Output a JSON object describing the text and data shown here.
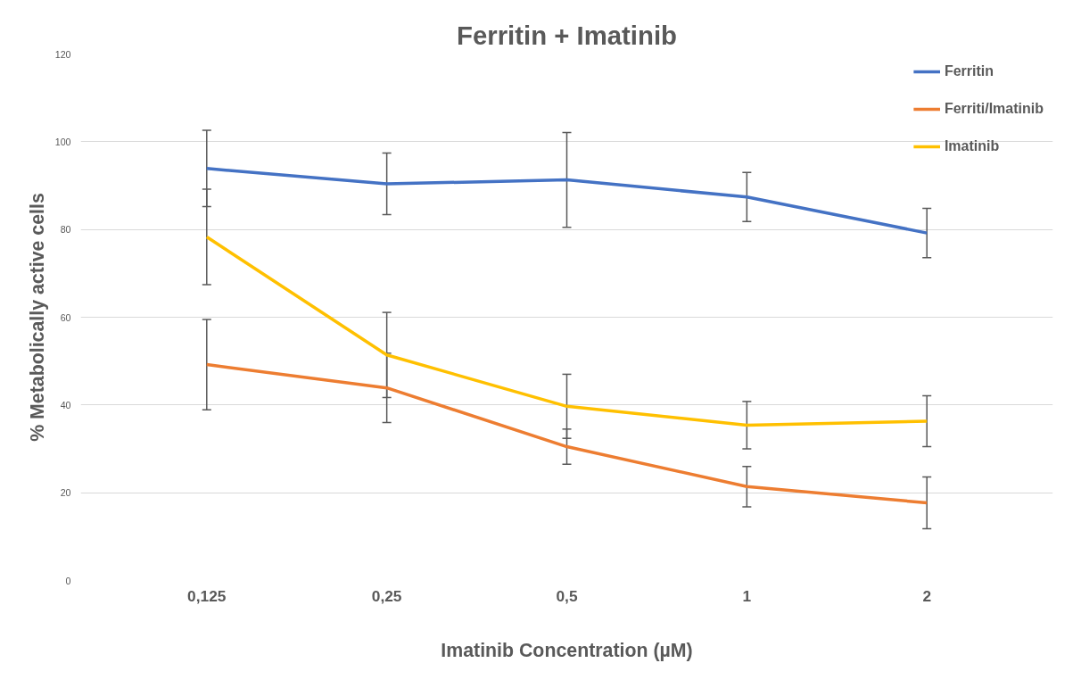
{
  "chart_data": {
    "type": "line",
    "title": "Ferritin + Imatinib",
    "xlabel": "Imatinib Concentration (µM)",
    "ylabel": "% Metabolically active cells",
    "categories": [
      "0,125",
      "0,25",
      "0,5",
      "1",
      "2"
    ],
    "series": [
      {
        "name": "Ferritin",
        "color": "#4472c4",
        "values": [
          93.9,
          90.4,
          91.3,
          87.4,
          79.2
        ],
        "errors": [
          8.7,
          7.0,
          10.8,
          5.6,
          5.6
        ]
      },
      {
        "name": "Ferriti/Imatinib",
        "color": "#ed7d31",
        "values": [
          49.2,
          43.9,
          30.5,
          21.4,
          17.7
        ],
        "errors": [
          10.3,
          7.9,
          4.0,
          4.6,
          5.9
        ]
      },
      {
        "name": "Imatinib",
        "color": "#ffc000",
        "values": [
          78.3,
          51.4,
          39.7,
          35.4,
          36.3
        ],
        "errors": [
          10.9,
          9.7,
          7.3,
          5.4,
          5.8
        ]
      }
    ],
    "ylim": [
      0,
      120
    ],
    "yticks": [
      0,
      20,
      40,
      60,
      80,
      100,
      120
    ],
    "grid": "y",
    "legend": "top right",
    "marker": "none",
    "line_style": "solid"
  }
}
